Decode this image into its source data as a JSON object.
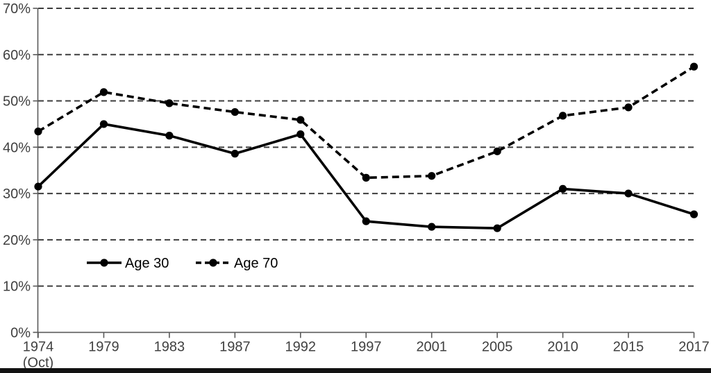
{
  "page": {
    "background": "#ffffff"
  },
  "footer_bar": {
    "color": "#121212"
  },
  "chart_data": {
    "type": "line",
    "title": "",
    "xlabel": "",
    "ylabel": "",
    "categories": [
      "1974",
      "1979",
      "1983",
      "1987",
      "1992",
      "1997",
      "2001",
      "2005",
      "2010",
      "2015",
      "2017"
    ],
    "first_category_note": "(Oct)",
    "series": [
      {
        "name": "Age 30",
        "line_style": "solid",
        "marker": "circle",
        "color": "#000000",
        "values": [
          31.5,
          45.0,
          42.5,
          38.6,
          42.8,
          24.0,
          22.8,
          22.5,
          31.0,
          30.0,
          25.5
        ]
      },
      {
        "name": "Age 70",
        "line_style": "dashed",
        "marker": "circle",
        "color": "#000000",
        "values": [
          43.4,
          51.9,
          49.5,
          47.6,
          45.9,
          33.4,
          33.8,
          39.1,
          46.8,
          48.6,
          57.4
        ]
      }
    ],
    "ylim": [
      0,
      70
    ],
    "ytick_step": 10,
    "ytick_labels": [
      "0%",
      "10%",
      "20%",
      "30%",
      "40%",
      "50%",
      "60%",
      "70%"
    ],
    "grid": {
      "horizontal": true,
      "vertical": false,
      "style": "dashed",
      "color": "#3d3d3d"
    },
    "axis_color": "#595959",
    "tick_label_color": "#404040",
    "legend": {
      "position": "inside-bottom-left",
      "entries": [
        "Age 30",
        "Age 70"
      ],
      "text_color": "#000000"
    }
  }
}
